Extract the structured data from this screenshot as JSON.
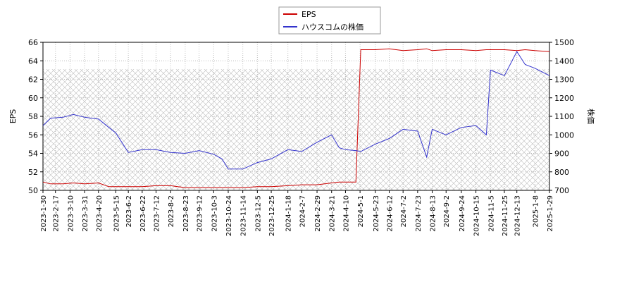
{
  "chart_data": {
    "type": "line",
    "ylabel": "EPS",
    "y2label": "株価",
    "x": [
      "2023-1-30",
      "2023-2-10",
      "2023-2-28",
      "2023-3-15",
      "2023-3-31",
      "2023-4-20",
      "2023-5-5",
      "2023-5-15",
      "2023-6-2",
      "2023-6-22",
      "2023-7-12",
      "2023-8-2",
      "2023-8-23",
      "2023-9-12",
      "2023-10-3",
      "2023-10-15",
      "2023-10-24",
      "2023-11-14",
      "2023-12-5",
      "2023-12-25",
      "2024-1-18",
      "2024-2-7",
      "2024-2-29",
      "2024-3-21",
      "2024-4-1",
      "2024-4-10",
      "2024-4-25",
      "2024-5-2",
      "2024-5-23",
      "2024-6-12",
      "2024-7-2",
      "2024-7-23",
      "2024-8-5",
      "2024-8-13",
      "2024-9-2",
      "2024-9-24",
      "2024-10-15",
      "2024-10-30",
      "2024-11-5",
      "2024-11-25",
      "2024-12-13",
      "2024-12-25",
      "2025-1-8",
      "2025-1-29"
    ],
    "series": [
      {
        "name": "EPS",
        "color": "#cc0000",
        "values": [
          50.9,
          50.7,
          50.7,
          50.8,
          50.7,
          50.8,
          50.4,
          50.4,
          50.4,
          50.4,
          50.5,
          50.5,
          50.3,
          50.3,
          50.3,
          50.3,
          50.3,
          50.3,
          50.4,
          50.4,
          50.5,
          50.6,
          50.6,
          50.8,
          50.9,
          50.9,
          50.9,
          65.2,
          65.2,
          65.3,
          65.1,
          65.2,
          65.3,
          65.1,
          65.2,
          65.2,
          65.1,
          65.2,
          65.2,
          65.2,
          65.1,
          65.2,
          65.1,
          65.0
        ]
      },
      {
        "name": "ハウスコムの株価",
        "color": "#3333cc",
        "axis": "y2",
        "values": [
          1050,
          1090,
          1095,
          1110,
          1095,
          1085,
          1040,
          1010,
          905,
          920,
          920,
          905,
          900,
          915,
          895,
          870,
          815,
          815,
          850,
          870,
          920,
          910,
          960,
          1000,
          930,
          920,
          915,
          910,
          950,
          980,
          1030,
          1020,
          880,
          1030,
          1000,
          1040,
          1050,
          1000,
          1350,
          1320,
          1450,
          1380,
          1360,
          1320
        ]
      }
    ],
    "xlim": [
      "2023-1-30",
      "2025-1-29"
    ],
    "xticks": [
      "2023-1-30",
      "2023-2-17",
      "2023-3-10",
      "2023-3-31",
      "2023-4-20",
      "2023-5-15",
      "2023-6-2",
      "2023-6-22",
      "2023-7-12",
      "2023-8-2",
      "2023-8-23",
      "2023-9-12",
      "2023-10-3",
      "2023-10-24",
      "2023-11-14",
      "2023-12-5",
      "2023-12-25",
      "2024-1-18",
      "2024-2-7",
      "2024-2-29",
      "2024-3-21",
      "2024-4-10",
      "2024-5-1",
      "2024-5-23",
      "2024-6-12",
      "2024-7-2",
      "2024-7-23",
      "2024-8-13",
      "2024-9-2",
      "2024-9-24",
      "2024-10-15",
      "2024-11-5",
      "2024-11-25",
      "2024-12-13",
      "2025-1-8",
      "2025-1-29"
    ],
    "ylim": [
      50,
      66
    ],
    "yticks": [
      50,
      52,
      54,
      56,
      58,
      60,
      62,
      64,
      66
    ],
    "y2lim": [
      700,
      1500
    ],
    "y2ticks": [
      700,
      800,
      900,
      1000,
      1100,
      1200,
      1300,
      1400,
      1500
    ],
    "grid": true,
    "legend": "top"
  }
}
